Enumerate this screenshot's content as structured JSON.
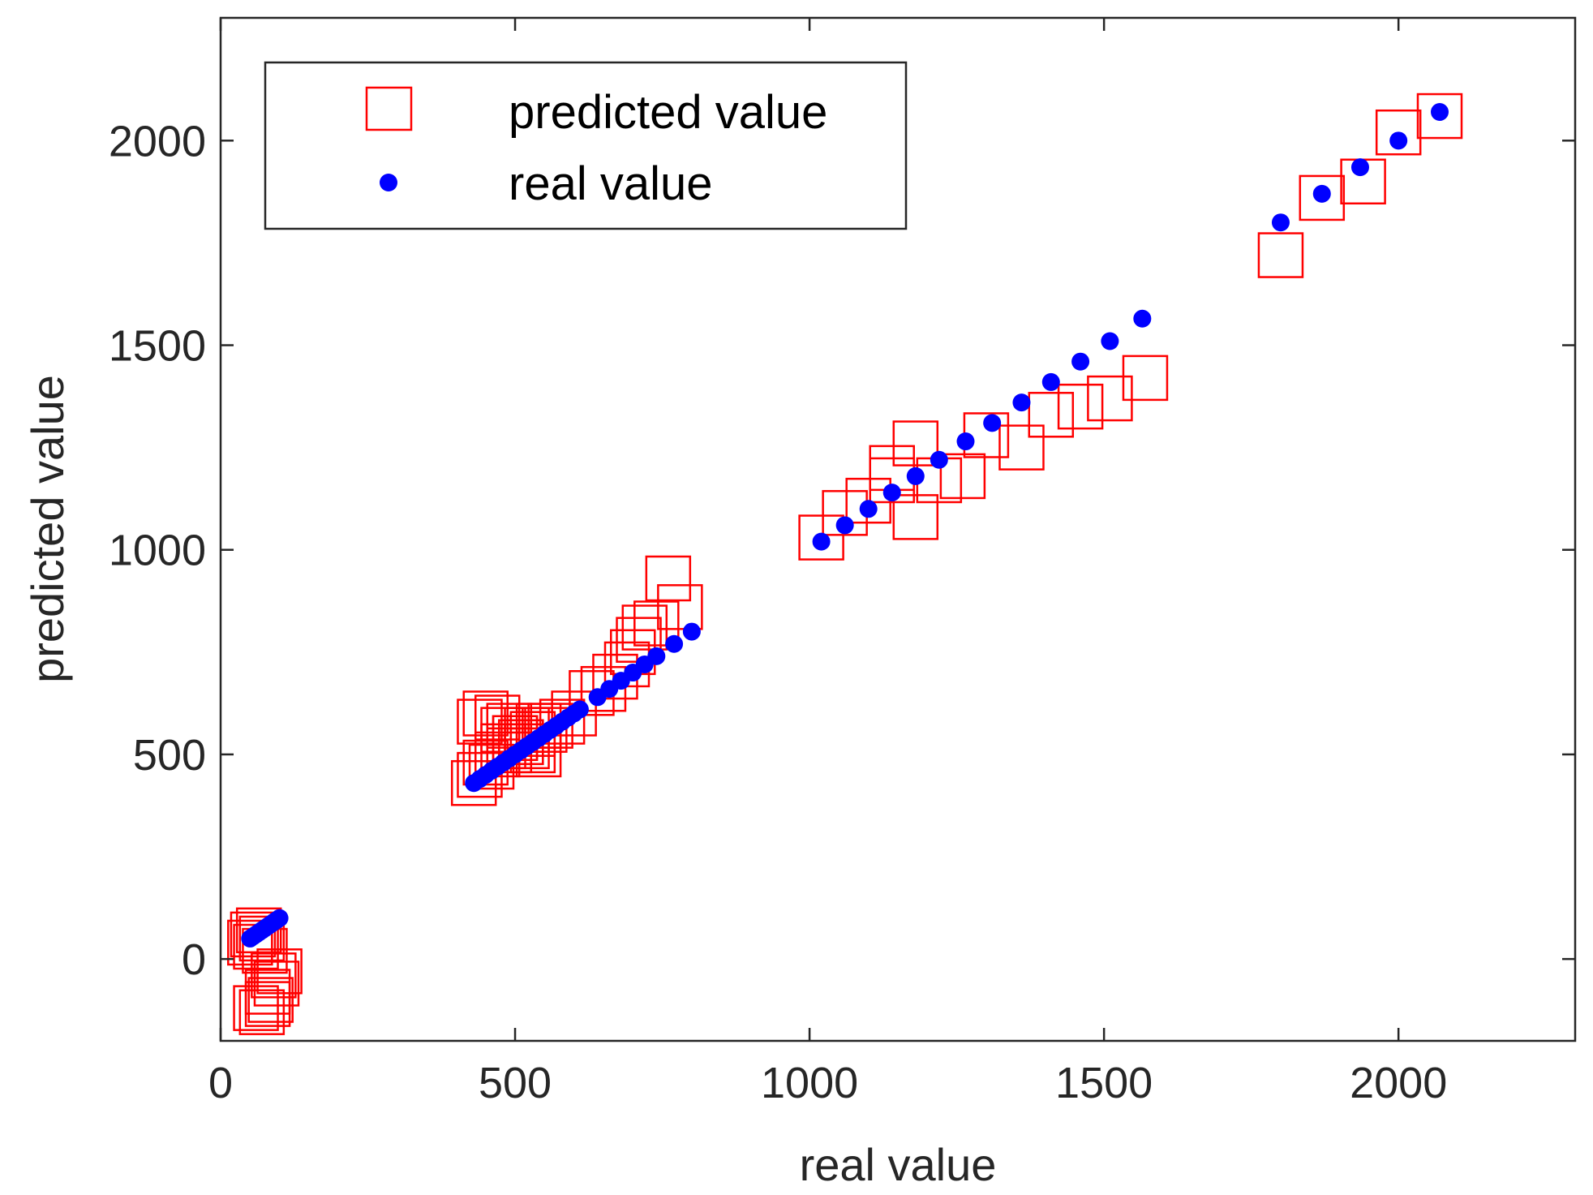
{
  "colors": {
    "predicted": "#ff0000",
    "real": "#0000ff",
    "axis": "#262626"
  },
  "chart_data": {
    "type": "scatter",
    "title": "",
    "xlabel": "real value",
    "ylabel": "predicted value",
    "xlim": [
      0,
      2300
    ],
    "ylim": [
      -200,
      2300
    ],
    "xticks": [
      0,
      500,
      1000,
      1500,
      2000
    ],
    "xtick_labels": [
      "0",
      "500",
      "1000",
      "1500",
      "2000"
    ],
    "yticks": [
      0,
      500,
      1000,
      1500,
      2000
    ],
    "ytick_labels": [
      "0",
      "500",
      "1000",
      "1500",
      "2000"
    ],
    "grid": false,
    "legend_position": "top-left",
    "series": [
      {
        "name": "predicted value",
        "marker": "square",
        "color": "#ff0000",
        "x": [
          50,
          55,
          60,
          65,
          70,
          75,
          80,
          85,
          90,
          95,
          100,
          60,
          70,
          80,
          430,
          440,
          450,
          460,
          470,
          480,
          490,
          500,
          510,
          520,
          530,
          540,
          550,
          560,
          580,
          600,
          630,
          650,
          670,
          690,
          700,
          710,
          720,
          740,
          760,
          780,
          440,
          450,
          470,
          480,
          490,
          500,
          510,
          520,
          530,
          540,
          1020,
          1060,
          1100,
          1140,
          1180,
          1220,
          1260,
          1300,
          1360,
          1410,
          1460,
          1510,
          1570,
          1180,
          1140,
          1800,
          1870,
          1940,
          2000,
          2070
        ],
        "y": [
          40,
          60,
          30,
          70,
          50,
          20,
          -80,
          -100,
          -40,
          -60,
          -30,
          -120,
          -130,
          -110,
          430,
          450,
          480,
          470,
          500,
          520,
          510,
          540,
          530,
          560,
          550,
          570,
          560,
          570,
          580,
          600,
          650,
          660,
          690,
          720,
          750,
          780,
          810,
          820,
          930,
          860,
          580,
          600,
          590,
          560,
          570,
          540,
          530,
          520,
          510,
          500,
          1030,
          1090,
          1120,
          1170,
          1080,
          1170,
          1180,
          1280,
          1250,
          1330,
          1350,
          1370,
          1420,
          1260,
          1200,
          1720,
          1860,
          1900,
          2020,
          2060
        ]
      },
      {
        "name": "real value",
        "marker": "circle",
        "color": "#0000ff",
        "x": [
          50,
          55,
          60,
          65,
          70,
          75,
          80,
          85,
          90,
          95,
          100,
          430,
          440,
          450,
          460,
          470,
          480,
          490,
          500,
          510,
          520,
          530,
          540,
          550,
          560,
          570,
          580,
          590,
          600,
          610,
          640,
          660,
          680,
          700,
          720,
          740,
          770,
          800,
          1020,
          1060,
          1100,
          1140,
          1180,
          1220,
          1265,
          1310,
          1360,
          1410,
          1460,
          1510,
          1565,
          1800,
          1870,
          1935,
          2000,
          2070
        ],
        "y": [
          50,
          55,
          60,
          65,
          70,
          75,
          80,
          85,
          90,
          95,
          100,
          430,
          440,
          450,
          460,
          470,
          480,
          490,
          500,
          510,
          520,
          530,
          540,
          550,
          560,
          570,
          580,
          590,
          600,
          610,
          640,
          660,
          680,
          700,
          720,
          740,
          770,
          800,
          1020,
          1060,
          1100,
          1140,
          1180,
          1220,
          1265,
          1310,
          1360,
          1410,
          1460,
          1510,
          1565,
          1800,
          1870,
          1935,
          2000,
          2070
        ]
      }
    ]
  }
}
